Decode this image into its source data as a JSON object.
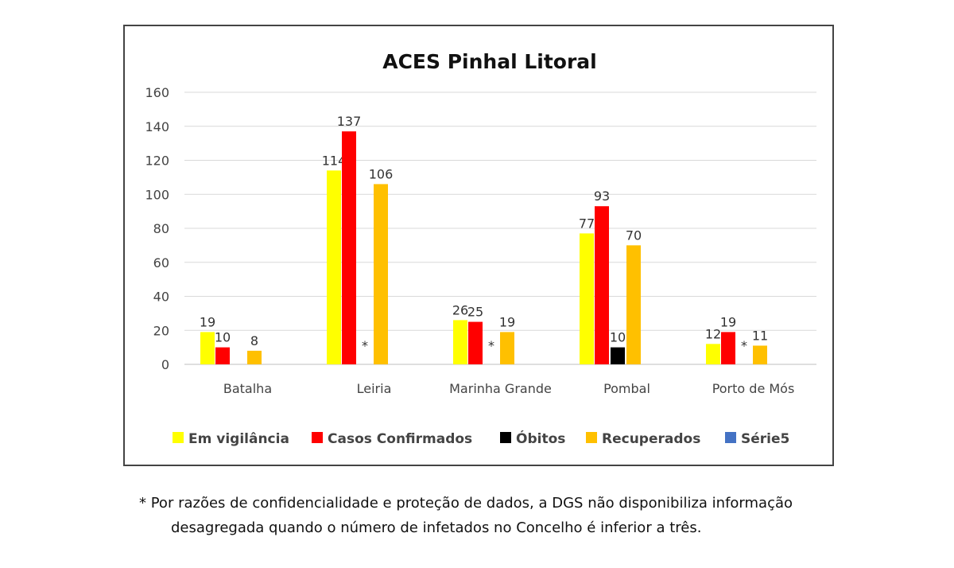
{
  "chart_data": {
    "type": "bar",
    "title": "ACES Pinhal Litoral",
    "categories": [
      "Batalha",
      "Leiria",
      "Marinha Grande",
      "Pombal",
      "Porto de Mós"
    ],
    "ylim": [
      0,
      160
    ],
    "yticks": [
      0,
      20,
      40,
      60,
      80,
      100,
      120,
      140,
      160
    ],
    "grid": true,
    "legend_position": "bottom",
    "series": [
      {
        "name": "Em vigilância",
        "color": "#FFFF00",
        "values": [
          19,
          114,
          26,
          77,
          12
        ]
      },
      {
        "name": "Casos Confirmados",
        "color": "#FF0000",
        "values": [
          10,
          137,
          25,
          93,
          19
        ]
      },
      {
        "name": "Óbitos",
        "color": "#000000",
        "values": [
          null,
          "*",
          "*",
          10,
          "*"
        ]
      },
      {
        "name": "Recuperados",
        "color": "#FFC000",
        "values": [
          8,
          106,
          19,
          70,
          11
        ]
      },
      {
        "name": "Série5",
        "color": "#4472C4",
        "values": [
          null,
          null,
          null,
          null,
          null
        ]
      }
    ]
  },
  "footnote": {
    "line1": "* Por razões de confidencialidade e proteção de dados, a DGS não disponibiliza informação",
    "line2": "desagregada quando o número de infetados no Concelho é inferior a três."
  }
}
